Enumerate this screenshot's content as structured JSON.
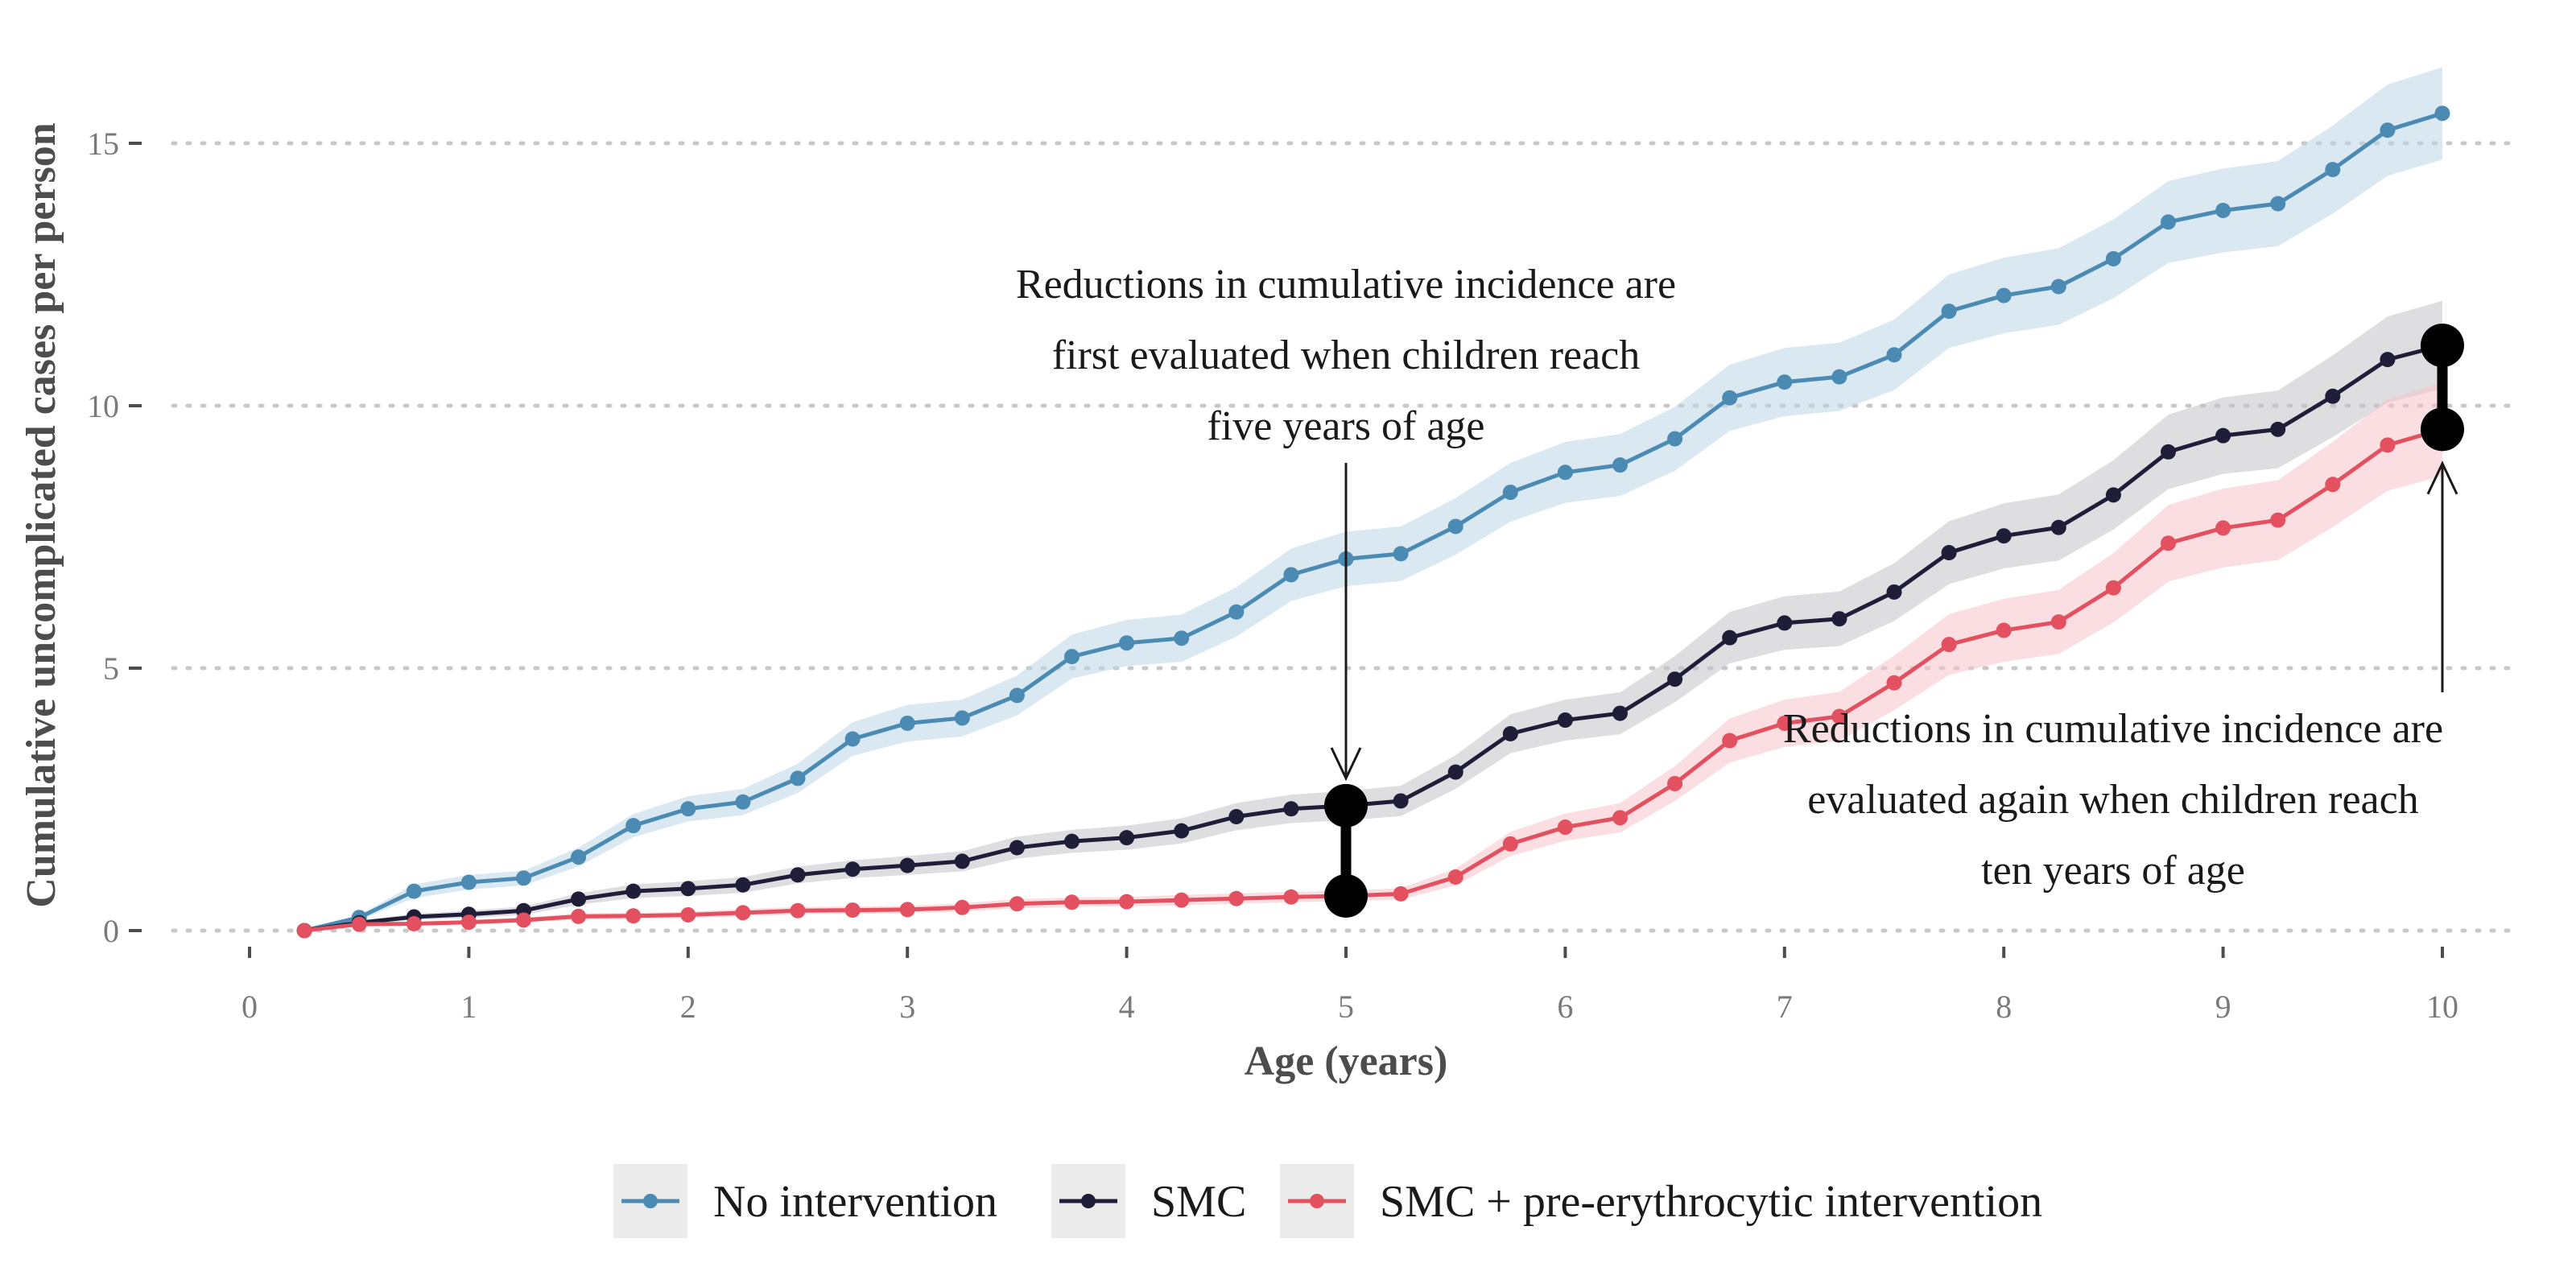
{
  "chart_data": {
    "type": "line",
    "title": "",
    "xlabel": "Age (years)",
    "ylabel": "Cumulative uncomplicated cases per person",
    "xlim": [
      0,
      10
    ],
    "ylim": [
      0,
      16
    ],
    "x_ticks": [
      0,
      1,
      2,
      3,
      4,
      5,
      6,
      7,
      8,
      9,
      10
    ],
    "y_ticks": [
      0,
      5,
      10,
      15
    ],
    "grid": "horizontal-major-dotted",
    "legend_position": "bottom",
    "x": [
      0.25,
      0.5,
      0.75,
      1.0,
      1.25,
      1.5,
      1.75,
      2.0,
      2.25,
      2.5,
      2.75,
      3.0,
      3.25,
      3.5,
      3.75,
      4.0,
      4.25,
      4.5,
      4.75,
      5.0,
      5.25,
      5.5,
      5.75,
      6.0,
      6.25,
      6.5,
      6.75,
      7.0,
      7.25,
      7.5,
      7.75,
      8.0,
      8.25,
      8.5,
      8.75,
      9.0,
      9.25,
      9.5,
      9.75,
      10.0
    ],
    "series": [
      {
        "name": "No intervention",
        "color": "#4a8ab3",
        "band_color": "#bcd5e6",
        "values": [
          0.0,
          0.25,
          0.75,
          0.92,
          1.0,
          1.4,
          2.0,
          2.32,
          2.45,
          2.9,
          3.65,
          3.95,
          4.05,
          4.48,
          5.22,
          5.48,
          5.57,
          6.07,
          6.78,
          7.08,
          7.18,
          7.7,
          8.35,
          8.73,
          8.87,
          9.37,
          10.15,
          10.45,
          10.55,
          10.97,
          11.8,
          12.1,
          12.27,
          12.8,
          13.5,
          13.72,
          13.85,
          14.5,
          15.25,
          15.57
        ],
        "lower": [
          0.0,
          0.2,
          0.62,
          0.78,
          0.86,
          1.22,
          1.78,
          2.08,
          2.2,
          2.62,
          3.33,
          3.6,
          3.7,
          4.1,
          4.8,
          5.04,
          5.12,
          5.6,
          6.28,
          6.56,
          6.66,
          7.16,
          7.79,
          8.15,
          8.28,
          8.76,
          9.52,
          9.8,
          9.9,
          10.3,
          11.1,
          11.38,
          11.54,
          12.05,
          12.72,
          12.92,
          13.04,
          13.66,
          14.38,
          14.69
        ],
        "upper": [
          0.0,
          0.3,
          0.88,
          1.06,
          1.14,
          1.58,
          2.22,
          2.56,
          2.7,
          3.18,
          3.97,
          4.3,
          4.4,
          4.86,
          5.64,
          5.92,
          6.02,
          6.54,
          7.28,
          7.6,
          7.7,
          8.24,
          8.91,
          9.31,
          9.46,
          9.98,
          10.78,
          11.1,
          11.2,
          11.64,
          12.5,
          12.82,
          13.0,
          13.55,
          14.28,
          14.52,
          14.66,
          15.34,
          16.12,
          16.45
        ]
      },
      {
        "name": "SMC",
        "color": "#1f1d38",
        "band_color": "#c3c3c9",
        "values": [
          0.0,
          0.15,
          0.26,
          0.31,
          0.38,
          0.6,
          0.75,
          0.8,
          0.87,
          1.06,
          1.17,
          1.24,
          1.32,
          1.58,
          1.7,
          1.77,
          1.9,
          2.17,
          2.32,
          2.38,
          2.47,
          3.02,
          3.75,
          4.01,
          4.14,
          4.79,
          5.58,
          5.86,
          5.94,
          6.45,
          7.2,
          7.52,
          7.68,
          8.3,
          9.12,
          9.43,
          9.55,
          10.18,
          10.88,
          11.15
        ],
        "lower": [
          0.0,
          0.11,
          0.2,
          0.24,
          0.3,
          0.49,
          0.62,
          0.66,
          0.72,
          0.9,
          1.0,
          1.06,
          1.13,
          1.37,
          1.48,
          1.54,
          1.66,
          1.91,
          2.05,
          2.1,
          2.18,
          2.7,
          3.38,
          3.62,
          3.74,
          4.35,
          5.09,
          5.35,
          5.42,
          5.9,
          6.6,
          6.9,
          7.05,
          7.64,
          8.41,
          8.7,
          8.81,
          9.4,
          10.06,
          10.32
        ],
        "upper": [
          0.0,
          0.19,
          0.32,
          0.38,
          0.46,
          0.71,
          0.88,
          0.94,
          1.02,
          1.22,
          1.34,
          1.42,
          1.51,
          1.79,
          1.92,
          2.0,
          2.14,
          2.43,
          2.59,
          2.66,
          2.76,
          3.34,
          4.12,
          4.4,
          4.54,
          5.23,
          6.07,
          6.37,
          6.46,
          7.0,
          7.8,
          8.14,
          8.31,
          8.96,
          9.83,
          10.16,
          10.29,
          10.96,
          11.7,
          12.0
        ]
      },
      {
        "name": "SMC + pre-erythrocytic intervention",
        "color": "#e3505f",
        "band_color": "#f6c3c8",
        "values": [
          0.0,
          0.12,
          0.13,
          0.16,
          0.2,
          0.27,
          0.28,
          0.3,
          0.34,
          0.38,
          0.39,
          0.4,
          0.44,
          0.51,
          0.54,
          0.55,
          0.58,
          0.61,
          0.64,
          0.66,
          0.7,
          1.02,
          1.65,
          1.97,
          2.15,
          2.8,
          3.62,
          3.95,
          4.08,
          4.72,
          5.45,
          5.72,
          5.88,
          6.53,
          7.38,
          7.67,
          7.82,
          8.5,
          9.25,
          9.55
        ],
        "lower": [
          0.0,
          0.09,
          0.1,
          0.12,
          0.15,
          0.21,
          0.22,
          0.24,
          0.27,
          0.31,
          0.32,
          0.33,
          0.36,
          0.42,
          0.45,
          0.46,
          0.48,
          0.51,
          0.54,
          0.56,
          0.59,
          0.86,
          1.42,
          1.71,
          1.87,
          2.47,
          3.2,
          3.5,
          3.61,
          4.2,
          4.87,
          5.12,
          5.27,
          5.87,
          6.65,
          6.92,
          7.06,
          7.69,
          8.38,
          8.66
        ],
        "upper": [
          0.0,
          0.15,
          0.16,
          0.2,
          0.25,
          0.33,
          0.34,
          0.36,
          0.41,
          0.45,
          0.46,
          0.47,
          0.52,
          0.6,
          0.63,
          0.64,
          0.68,
          0.71,
          0.74,
          0.76,
          0.81,
          1.18,
          1.88,
          2.23,
          2.43,
          3.13,
          4.04,
          4.4,
          4.55,
          5.24,
          6.03,
          6.32,
          6.49,
          7.19,
          8.11,
          8.42,
          8.58,
          9.31,
          10.12,
          10.44
        ]
      }
    ],
    "highlights": [
      {
        "x": 5,
        "y_top": 2.38,
        "y_bottom": 0.66
      },
      {
        "x": 10,
        "y_top": 11.15,
        "y_bottom": 9.55
      }
    ],
    "annotations": [
      {
        "lines": [
          "Reductions in cumulative incidence are",
          "first evaluated when children reach",
          "five years of age"
        ],
        "arrow_target_x": 5,
        "arrow_target_y": 2.9
      },
      {
        "lines": [
          "Reductions in cumulative incidence are",
          "evaluated again when children reach",
          "ten years of age"
        ],
        "arrow_target_x": 10,
        "arrow_target_y": 8.9
      }
    ]
  }
}
